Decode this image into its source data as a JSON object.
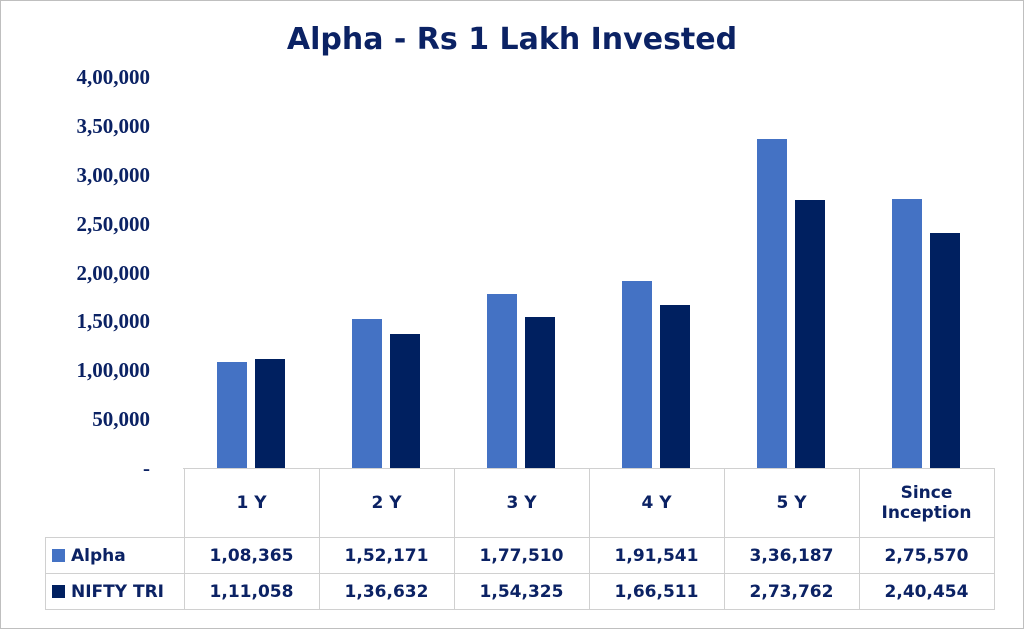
{
  "chart_data": {
    "type": "bar",
    "title": "Alpha - Rs 1 Lakh Invested",
    "categories": [
      "1 Y",
      "2 Y",
      "3 Y",
      "4 Y",
      "5 Y",
      "Since Inception"
    ],
    "category_lines": [
      [
        "1 Y"
      ],
      [
        "2 Y"
      ],
      [
        "3 Y"
      ],
      [
        "4 Y"
      ],
      [
        "5 Y"
      ],
      [
        "Since",
        "Inception"
      ]
    ],
    "series": [
      {
        "name": "Alpha",
        "color": "#4472c4",
        "values": [
          108365,
          152171,
          177510,
          191541,
          336187,
          275570
        ],
        "labels": [
          "1,08,365",
          "1,52,171",
          "1,77,510",
          "1,91,541",
          "3,36,187",
          "2,75,570"
        ]
      },
      {
        "name": "NIFTY TRI",
        "color": "#002060",
        "values": [
          111058,
          136632,
          154325,
          166511,
          273762,
          240454
        ],
        "labels": [
          "1,11,058",
          "1,36,632",
          "1,54,325",
          "1,66,511",
          "2,73,762",
          "2,40,454"
        ]
      }
    ],
    "yticks": [
      0,
      50000,
      100000,
      150000,
      200000,
      250000,
      300000,
      350000,
      400000
    ],
    "ytick_labels": [
      "-",
      "50,000",
      "1,00,000",
      "1,50,000",
      "2,00,000",
      "2,50,000",
      "3,00,000",
      "3,50,000",
      "4,00,000"
    ],
    "ylim": [
      0,
      400000
    ],
    "grid": false,
    "legend": "data-table"
  }
}
